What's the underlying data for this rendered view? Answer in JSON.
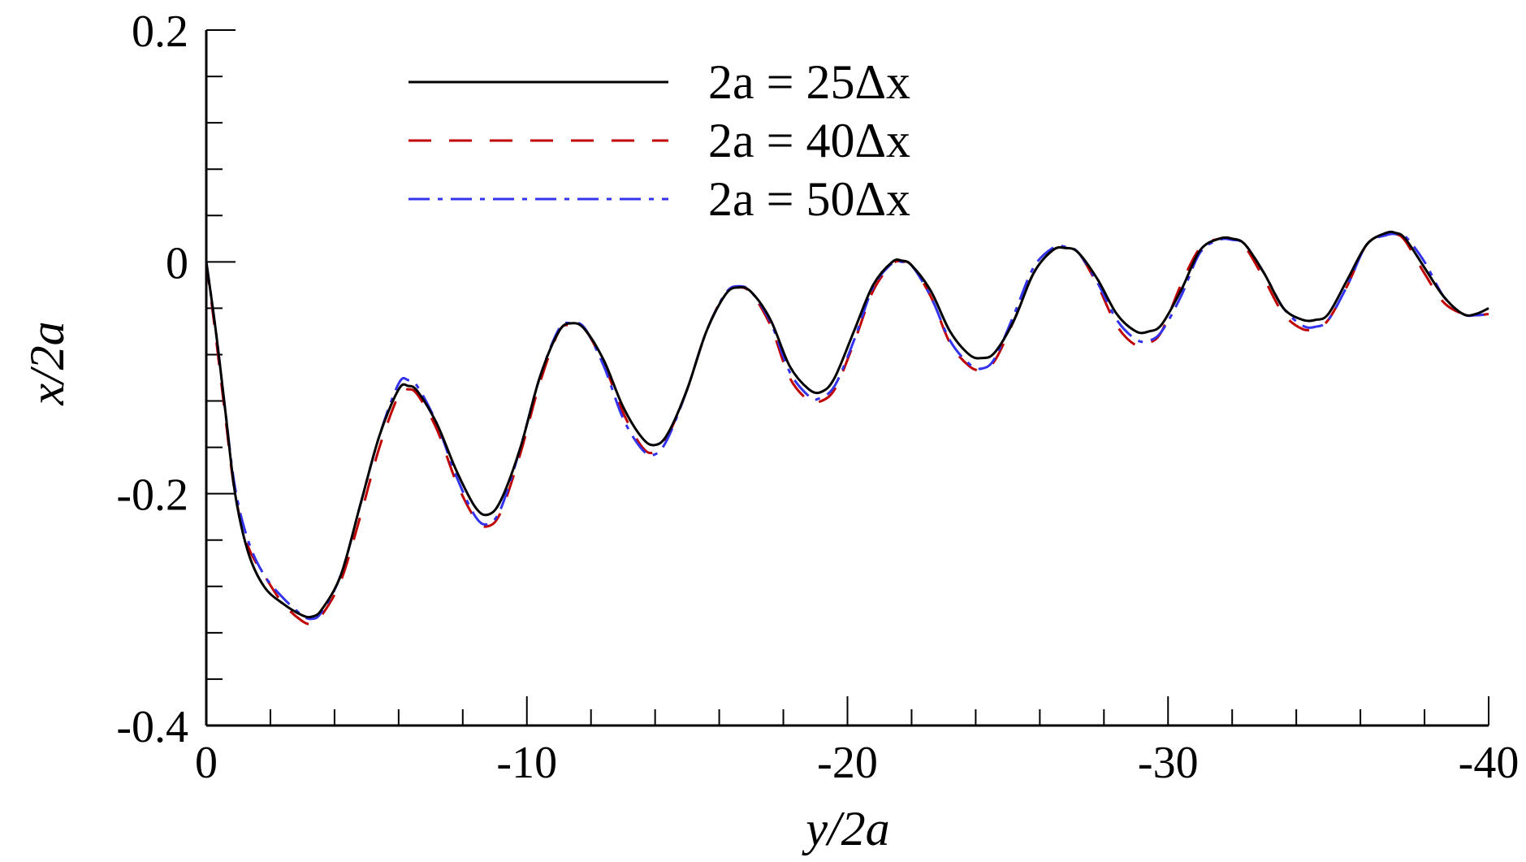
{
  "chart_data": {
    "type": "line",
    "xlabel": "y/2a",
    "ylabel": "x/2a",
    "xlim": [
      0,
      -40
    ],
    "ylim": [
      -0.4,
      0.2
    ],
    "x_ticks": [
      0,
      -10,
      -20,
      -30,
      -40
    ],
    "x_tick_labels": [
      "0",
      "-10",
      "-20",
      "-30",
      "-40"
    ],
    "x_minor_step": -2,
    "y_ticks": [
      -0.4,
      -0.2,
      0,
      0.2
    ],
    "y_tick_labels": [
      "-0.4",
      "-0.2",
      "0",
      "0.2"
    ],
    "y_minor_step": 0.04,
    "legend_position": "top-center",
    "grid": false,
    "series": [
      {
        "name": "2a = 25Δx",
        "color": "#000000",
        "dash": "solid",
        "x": [
          0,
          -0.3,
          -0.6,
          -0.9,
          -1.3,
          -1.8,
          -2.4,
          -3.0,
          -3.3,
          -3.6,
          -4.2,
          -4.8,
          -5.4,
          -6.0,
          -6.3,
          -6.6,
          -7.2,
          -7.8,
          -8.4,
          -8.8,
          -9.2,
          -9.8,
          -10.4,
          -11.0,
          -11.4,
          -11.8,
          -12.4,
          -13.0,
          -13.6,
          -14.0,
          -14.4,
          -15.0,
          -15.6,
          -16.2,
          -16.6,
          -17.0,
          -17.6,
          -18.2,
          -18.8,
          -19.2,
          -19.6,
          -20.2,
          -20.8,
          -21.4,
          -21.7,
          -22.0,
          -22.6,
          -23.2,
          -23.8,
          -24.2,
          -24.6,
          -25.2,
          -25.8,
          -26.4,
          -26.8,
          -27.2,
          -27.8,
          -28.4,
          -29.0,
          -29.4,
          -29.8,
          -30.4,
          -31.0,
          -31.6,
          -32.0,
          -32.4,
          -33.0,
          -33.6,
          -34.2,
          -34.6,
          -35.0,
          -35.6,
          -36.2,
          -36.8,
          -37.1,
          -37.4,
          -38.0,
          -38.6,
          -39.2,
          -39.6,
          -40.0
        ],
        "y": [
          0,
          -0.06,
          -0.13,
          -0.2,
          -0.25,
          -0.28,
          -0.295,
          -0.305,
          -0.306,
          -0.3,
          -0.27,
          -0.21,
          -0.15,
          -0.11,
          -0.107,
          -0.112,
          -0.14,
          -0.18,
          -0.212,
          -0.218,
          -0.205,
          -0.16,
          -0.1,
          -0.06,
          -0.053,
          -0.058,
          -0.085,
          -0.125,
          -0.152,
          -0.158,
          -0.148,
          -0.11,
          -0.06,
          -0.028,
          -0.022,
          -0.026,
          -0.05,
          -0.09,
          -0.11,
          -0.112,
          -0.1,
          -0.06,
          -0.02,
          0.0,
          0.001,
          -0.003,
          -0.025,
          -0.06,
          -0.08,
          -0.083,
          -0.078,
          -0.05,
          -0.01,
          0.01,
          0.012,
          0.008,
          -0.015,
          -0.045,
          -0.06,
          -0.06,
          -0.054,
          -0.025,
          0.01,
          0.02,
          0.02,
          0.015,
          -0.01,
          -0.04,
          -0.05,
          -0.05,
          -0.045,
          -0.015,
          0.015,
          0.025,
          0.025,
          0.02,
          -0.005,
          -0.03,
          -0.045,
          -0.045,
          -0.04
        ]
      },
      {
        "name": "2a = 40Δx",
        "color": "#c00000",
        "dash": "28 22",
        "x": [
          0,
          -0.3,
          -0.6,
          -0.9,
          -1.3,
          -1.8,
          -2.4,
          -3.0,
          -3.3,
          -3.6,
          -4.2,
          -4.8,
          -5.4,
          -6.0,
          -6.3,
          -6.6,
          -7.2,
          -7.8,
          -8.4,
          -8.8,
          -9.2,
          -9.8,
          -10.4,
          -11.0,
          -11.4,
          -11.8,
          -12.4,
          -13.0,
          -13.6,
          -14.0,
          -14.4,
          -15.0,
          -15.6,
          -16.2,
          -16.6,
          -17.0,
          -17.6,
          -18.2,
          -18.8,
          -19.1,
          -19.6,
          -20.2,
          -20.8,
          -21.4,
          -21.7,
          -22.0,
          -22.6,
          -23.2,
          -23.8,
          -24.2,
          -24.6,
          -25.2,
          -25.8,
          -26.4,
          -26.8,
          -27.2,
          -27.8,
          -28.4,
          -29.0,
          -29.4,
          -29.8,
          -30.4,
          -31.0,
          -31.6,
          -32.0,
          -32.4,
          -33.0,
          -33.6,
          -34.2,
          -34.6,
          -35.0,
          -35.6,
          -36.2,
          -36.8,
          -37.1,
          -37.4,
          -38.0,
          -38.6,
          -39.2,
          -39.6,
          -40.0
        ],
        "y": [
          0,
          -0.065,
          -0.135,
          -0.2,
          -0.245,
          -0.27,
          -0.295,
          -0.31,
          -0.312,
          -0.305,
          -0.275,
          -0.22,
          -0.16,
          -0.115,
          -0.11,
          -0.115,
          -0.145,
          -0.19,
          -0.222,
          -0.228,
          -0.215,
          -0.165,
          -0.105,
          -0.06,
          -0.055,
          -0.058,
          -0.088,
          -0.13,
          -0.16,
          -0.164,
          -0.15,
          -0.11,
          -0.06,
          -0.027,
          -0.022,
          -0.027,
          -0.055,
          -0.1,
          -0.12,
          -0.121,
          -0.11,
          -0.07,
          -0.025,
          -0.002,
          0.0,
          -0.003,
          -0.03,
          -0.07,
          -0.09,
          -0.093,
          -0.085,
          -0.05,
          -0.01,
          0.01,
          0.012,
          0.008,
          -0.02,
          -0.055,
          -0.072,
          -0.07,
          -0.06,
          -0.02,
          0.012,
          0.02,
          0.02,
          0.013,
          -0.015,
          -0.045,
          -0.058,
          -0.057,
          -0.05,
          -0.02,
          0.015,
          0.024,
          0.024,
          0.018,
          -0.01,
          -0.035,
          -0.045,
          -0.046,
          -0.045
        ]
      },
      {
        "name": "2a = 50Δx",
        "color": "#3333ee",
        "dash": "26 10 6 10",
        "x": [
          0,
          -0.3,
          -0.6,
          -0.9,
          -1.3,
          -1.8,
          -2.4,
          -3.0,
          -3.3,
          -3.6,
          -4.2,
          -4.8,
          -5.4,
          -6.0,
          -6.3,
          -6.6,
          -7.2,
          -7.8,
          -8.4,
          -8.8,
          -9.2,
          -9.8,
          -10.4,
          -11.0,
          -11.4,
          -11.8,
          -12.4,
          -13.0,
          -13.6,
          -14.0,
          -14.4,
          -15.0,
          -15.6,
          -16.2,
          -16.6,
          -17.0,
          -17.6,
          -18.2,
          -18.8,
          -19.1,
          -19.6,
          -20.2,
          -20.8,
          -21.4,
          -21.7,
          -22.0,
          -22.6,
          -23.2,
          -23.8,
          -24.2,
          -24.6,
          -25.2,
          -25.8,
          -26.4,
          -26.8,
          -27.2,
          -27.8,
          -28.4,
          -29.0,
          -29.4,
          -29.8,
          -30.4,
          -31.0,
          -31.6,
          -32.0,
          -32.4,
          -33.0,
          -33.6,
          -34.2,
          -34.6,
          -35.0,
          -35.6,
          -36.2,
          -36.8,
          -37.1,
          -37.4,
          -38.0,
          -38.6,
          -39.2,
          -39.6,
          -40.0
        ],
        "y": [
          0,
          -0.06,
          -0.13,
          -0.195,
          -0.24,
          -0.27,
          -0.29,
          -0.305,
          -0.308,
          -0.302,
          -0.27,
          -0.21,
          -0.15,
          -0.105,
          -0.102,
          -0.108,
          -0.14,
          -0.185,
          -0.22,
          -0.226,
          -0.212,
          -0.16,
          -0.1,
          -0.058,
          -0.053,
          -0.057,
          -0.09,
          -0.135,
          -0.162,
          -0.166,
          -0.152,
          -0.11,
          -0.06,
          -0.027,
          -0.021,
          -0.026,
          -0.052,
          -0.095,
          -0.116,
          -0.118,
          -0.107,
          -0.068,
          -0.022,
          -0.001,
          0.0,
          -0.003,
          -0.03,
          -0.068,
          -0.088,
          -0.092,
          -0.083,
          -0.045,
          -0.005,
          0.012,
          0.013,
          0.008,
          -0.018,
          -0.05,
          -0.067,
          -0.068,
          -0.06,
          -0.03,
          0.008,
          0.019,
          0.019,
          0.015,
          -0.01,
          -0.04,
          -0.055,
          -0.056,
          -0.05,
          -0.02,
          0.015,
          0.023,
          0.024,
          0.022,
          0.0,
          -0.03,
          -0.045,
          -0.046,
          -0.045
        ]
      }
    ]
  }
}
